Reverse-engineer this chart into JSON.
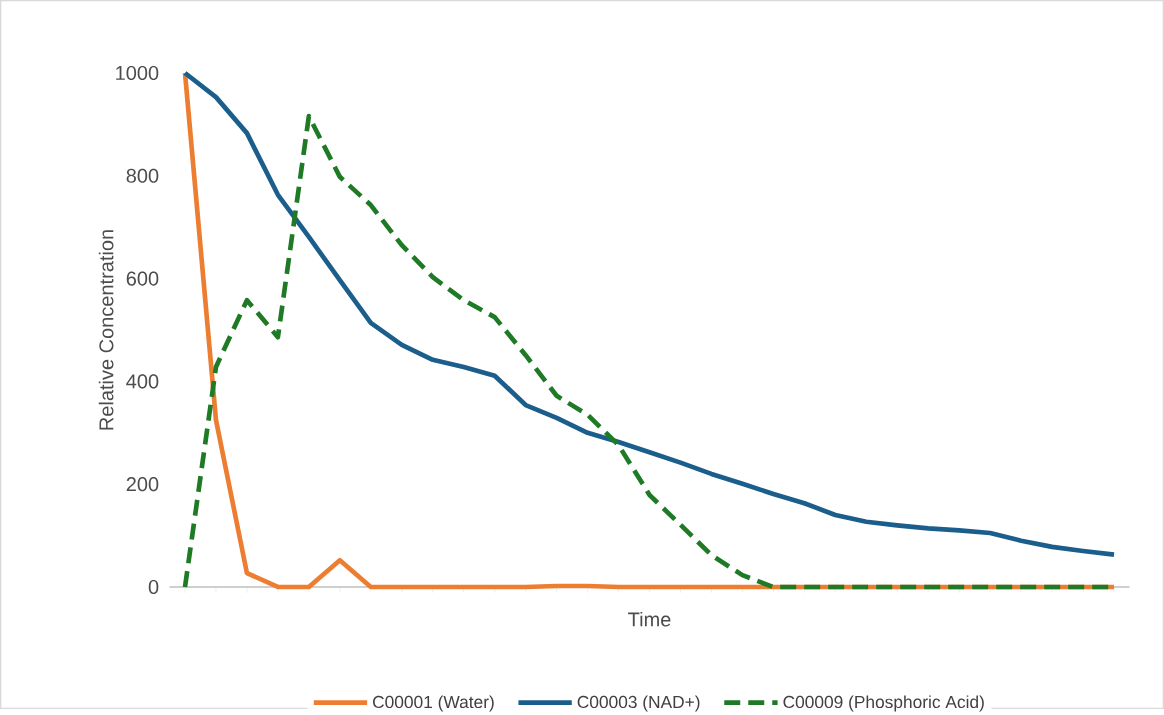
{
  "chart_data": {
    "type": "line",
    "xlabel": "Time",
    "ylabel": "Relative Concentration",
    "categories": [
      null,
      null,
      null,
      null,
      null,
      null,
      null,
      null,
      null,
      null,
      null,
      null,
      null,
      null,
      null,
      null,
      null,
      null,
      null,
      null,
      null,
      null,
      null,
      null,
      null,
      null,
      null,
      null,
      null,
      null,
      null
    ],
    "ylim": [
      0,
      1000
    ],
    "yticks": [
      0,
      200,
      400,
      600,
      800,
      1000
    ],
    "tick_labels": "y",
    "grid": false,
    "legend": "bottom",
    "marker": "none",
    "series": [
      {
        "name": "C00001 (Water)",
        "color": "#ed7d31",
        "line_style": "solid",
        "values": [
          1000,
          325,
          27,
          0,
          0,
          52,
          0,
          0,
          0,
          0,
          0,
          0,
          2,
          2,
          0,
          0,
          0,
          0,
          0,
          0,
          0,
          0,
          0,
          0,
          0,
          0,
          0,
          0,
          0,
          0,
          0
        ]
      },
      {
        "name": "C00003 (NAD+)",
        "color": "#1b5e8c",
        "line_style": "solid",
        "values": [
          1000,
          953,
          883,
          763,
          681,
          597,
          514,
          471,
          442,
          428,
          411,
          354,
          329,
          300,
          282,
          262,
          242,
          220,
          201,
          181,
          163,
          140,
          127,
          120,
          114,
          110,
          105,
          90,
          78,
          70,
          63
        ]
      },
      {
        "name": "C00009 (Phosphoric Acid)",
        "color": "#1e7a25",
        "line_style": "dashed",
        "values": [
          0,
          428,
          558,
          486,
          916,
          798,
          743,
          665,
          603,
          558,
          525,
          451,
          372,
          335,
          276,
          179,
          121,
          62,
          23,
          0,
          0,
          0,
          0,
          0,
          0,
          0,
          0,
          0,
          0,
          0,
          0
        ]
      }
    ]
  }
}
